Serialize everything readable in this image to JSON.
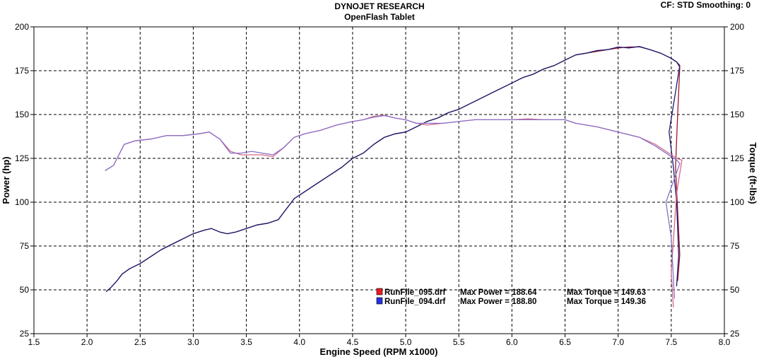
{
  "header": {
    "title": "DYNOJET RESEARCH",
    "subtitle": "OpenFlash Tablet",
    "settings": "CF: STD  Smoothing: 0"
  },
  "chart_data": {
    "type": "line",
    "xlabel": "Engine Speed (RPM x1000)",
    "ylabel_left": "Power (hp)",
    "ylabel_right": "Torque (ft-lbs)",
    "xlim": [
      1.5,
      8.0
    ],
    "ylim": [
      25,
      200
    ],
    "xticks": [
      "1.5",
      "2.0",
      "2.5",
      "3.0",
      "3.5",
      "4.0",
      "4.5",
      "5.0",
      "5.5",
      "6.0",
      "6.5",
      "7.0",
      "7.5",
      "8.0"
    ],
    "yticks": [
      "25",
      "50",
      "75",
      "100",
      "125",
      "150",
      "175",
      "200"
    ],
    "grid": true,
    "legend_position": "bottom-center",
    "legend": [
      {
        "file": "RunFile_095.drf",
        "power_label": "Max Power = 188.64",
        "torque_label": "Max Torque = 149.63",
        "color": "#e81d1d"
      },
      {
        "file": "RunFile_094.drf",
        "power_label": "Max Power = 188.80",
        "torque_label": "Max Torque = 149.36",
        "color": "#2233dd"
      }
    ],
    "series": [
      {
        "name": "RunFile_095.drf",
        "kind": "power",
        "color": "#9c1530",
        "points": [
          [
            2.18,
            49
          ],
          [
            2.22,
            51
          ],
          [
            2.28,
            55
          ],
          [
            2.33,
            59
          ],
          [
            2.4,
            62
          ],
          [
            2.5,
            65
          ],
          [
            2.6,
            69
          ],
          [
            2.7,
            73
          ],
          [
            2.8,
            76
          ],
          [
            2.9,
            79
          ],
          [
            3.0,
            82
          ],
          [
            3.1,
            84
          ],
          [
            3.17,
            85
          ],
          [
            3.25,
            83
          ],
          [
            3.32,
            82
          ],
          [
            3.4,
            83
          ],
          [
            3.5,
            85
          ],
          [
            3.6,
            87
          ],
          [
            3.7,
            88
          ],
          [
            3.8,
            90
          ],
          [
            3.85,
            94
          ],
          [
            3.9,
            98
          ],
          [
            3.95,
            102
          ],
          [
            4.05,
            106
          ],
          [
            4.2,
            112
          ],
          [
            4.4,
            120
          ],
          [
            4.5,
            125
          ],
          [
            4.6,
            128
          ],
          [
            4.7,
            133
          ],
          [
            4.8,
            137
          ],
          [
            4.9,
            139
          ],
          [
            5.0,
            140
          ],
          [
            5.1,
            143
          ],
          [
            5.2,
            146
          ],
          [
            5.3,
            148
          ],
          [
            5.4,
            151
          ],
          [
            5.5,
            153
          ],
          [
            5.6,
            156
          ],
          [
            5.7,
            159
          ],
          [
            5.8,
            162
          ],
          [
            5.9,
            165
          ],
          [
            6.0,
            168
          ],
          [
            6.1,
            171
          ],
          [
            6.2,
            173
          ],
          [
            6.3,
            176
          ],
          [
            6.4,
            178
          ],
          [
            6.5,
            181
          ],
          [
            6.6,
            184
          ],
          [
            6.7,
            185
          ],
          [
            6.8,
            186
          ],
          [
            6.9,
            187
          ],
          [
            7.0,
            188
          ],
          [
            7.1,
            188.5
          ],
          [
            7.2,
            188.6
          ],
          [
            7.3,
            187
          ],
          [
            7.4,
            185
          ],
          [
            7.5,
            182
          ],
          [
            7.55,
            180
          ],
          [
            7.58,
            177
          ],
          [
            7.56,
            150
          ],
          [
            7.54,
            120
          ],
          [
            7.56,
            95
          ],
          [
            7.58,
            70
          ],
          [
            7.56,
            55
          ]
        ]
      },
      {
        "name": "RunFile_094.drf",
        "kind": "power",
        "color": "#1a1a6e",
        "points": [
          [
            2.18,
            49
          ],
          [
            2.22,
            51
          ],
          [
            2.28,
            55
          ],
          [
            2.33,
            59
          ],
          [
            2.4,
            62
          ],
          [
            2.5,
            65
          ],
          [
            2.6,
            69
          ],
          [
            2.7,
            73
          ],
          [
            2.8,
            76
          ],
          [
            2.9,
            79
          ],
          [
            3.0,
            82
          ],
          [
            3.1,
            84
          ],
          [
            3.17,
            85
          ],
          [
            3.25,
            83
          ],
          [
            3.32,
            82
          ],
          [
            3.4,
            83
          ],
          [
            3.5,
            85
          ],
          [
            3.6,
            87
          ],
          [
            3.7,
            88
          ],
          [
            3.8,
            90
          ],
          [
            3.85,
            94
          ],
          [
            3.9,
            98
          ],
          [
            3.95,
            102
          ],
          [
            4.05,
            106
          ],
          [
            4.2,
            112
          ],
          [
            4.4,
            120
          ],
          [
            4.5,
            125
          ],
          [
            4.6,
            128
          ],
          [
            4.7,
            133
          ],
          [
            4.8,
            137
          ],
          [
            4.9,
            139
          ],
          [
            5.0,
            140
          ],
          [
            5.1,
            143
          ],
          [
            5.2,
            146
          ],
          [
            5.3,
            148
          ],
          [
            5.4,
            151
          ],
          [
            5.5,
            153
          ],
          [
            5.6,
            156
          ],
          [
            5.7,
            159
          ],
          [
            5.8,
            162
          ],
          [
            5.9,
            165
          ],
          [
            6.0,
            168
          ],
          [
            6.1,
            171
          ],
          [
            6.2,
            173
          ],
          [
            6.3,
            176
          ],
          [
            6.4,
            178
          ],
          [
            6.5,
            181
          ],
          [
            6.6,
            184
          ],
          [
            6.7,
            185
          ],
          [
            6.8,
            186.5
          ],
          [
            6.9,
            187
          ],
          [
            7.0,
            188.5
          ],
          [
            7.1,
            188
          ],
          [
            7.2,
            188.8
          ],
          [
            7.3,
            187
          ],
          [
            7.4,
            185
          ],
          [
            7.5,
            182
          ],
          [
            7.55,
            180
          ],
          [
            7.58,
            178
          ],
          [
            7.48,
            140
          ],
          [
            7.52,
            120
          ],
          [
            7.55,
            100
          ],
          [
            7.57,
            70
          ],
          [
            7.55,
            52
          ]
        ]
      },
      {
        "name": "RunFile_095.drf",
        "kind": "torque",
        "color": "#d46a8a",
        "points": [
          [
            2.17,
            118
          ],
          [
            2.25,
            121
          ],
          [
            2.3,
            127
          ],
          [
            2.35,
            133
          ],
          [
            2.45,
            135
          ],
          [
            2.6,
            136
          ],
          [
            2.75,
            138
          ],
          [
            2.9,
            138
          ],
          [
            3.05,
            139
          ],
          [
            3.15,
            140
          ],
          [
            3.25,
            136
          ],
          [
            3.35,
            129
          ],
          [
            3.45,
            127
          ],
          [
            3.55,
            127
          ],
          [
            3.65,
            127
          ],
          [
            3.75,
            126
          ],
          [
            3.85,
            131
          ],
          [
            3.95,
            137
          ],
          [
            4.05,
            139
          ],
          [
            4.2,
            141
          ],
          [
            4.35,
            144
          ],
          [
            4.5,
            146
          ],
          [
            4.6,
            147
          ],
          [
            4.7,
            149
          ],
          [
            4.8,
            149.6
          ],
          [
            4.9,
            148
          ],
          [
            5.0,
            147
          ],
          [
            5.1,
            145
          ],
          [
            5.2,
            144
          ],
          [
            5.35,
            145
          ],
          [
            5.5,
            146
          ],
          [
            5.65,
            147
          ],
          [
            5.8,
            147
          ],
          [
            6.0,
            147
          ],
          [
            6.15,
            147.5
          ],
          [
            6.3,
            147
          ],
          [
            6.5,
            147
          ],
          [
            6.6,
            145
          ],
          [
            6.8,
            143
          ],
          [
            7.0,
            140
          ],
          [
            7.2,
            137
          ],
          [
            7.35,
            133
          ],
          [
            7.45,
            129
          ],
          [
            7.55,
            125
          ],
          [
            7.6,
            124
          ],
          [
            7.55,
            105
          ],
          [
            7.5,
            60
          ],
          [
            7.52,
            40
          ]
        ]
      },
      {
        "name": "RunFile_094.drf",
        "kind": "torque",
        "color": "#8a70c8",
        "points": [
          [
            2.17,
            118
          ],
          [
            2.25,
            121
          ],
          [
            2.3,
            127
          ],
          [
            2.35,
            133
          ],
          [
            2.45,
            135
          ],
          [
            2.6,
            136
          ],
          [
            2.75,
            138
          ],
          [
            2.9,
            138
          ],
          [
            3.05,
            139
          ],
          [
            3.15,
            140
          ],
          [
            3.25,
            136
          ],
          [
            3.35,
            128
          ],
          [
            3.45,
            128
          ],
          [
            3.55,
            129
          ],
          [
            3.65,
            128
          ],
          [
            3.75,
            127
          ],
          [
            3.85,
            131
          ],
          [
            3.95,
            137
          ],
          [
            4.05,
            139
          ],
          [
            4.2,
            141
          ],
          [
            4.35,
            144
          ],
          [
            4.5,
            146
          ],
          [
            4.6,
            147
          ],
          [
            4.7,
            148.5
          ],
          [
            4.8,
            149.4
          ],
          [
            4.9,
            148
          ],
          [
            5.0,
            147
          ],
          [
            5.1,
            145
          ],
          [
            5.2,
            145
          ],
          [
            5.35,
            145
          ],
          [
            5.5,
            146
          ],
          [
            5.65,
            147
          ],
          [
            5.8,
            147
          ],
          [
            6.0,
            147
          ],
          [
            6.15,
            147
          ],
          [
            6.3,
            147
          ],
          [
            6.5,
            147
          ],
          [
            6.6,
            145
          ],
          [
            6.8,
            143
          ],
          [
            7.0,
            140
          ],
          [
            7.2,
            137
          ],
          [
            7.35,
            132
          ],
          [
            7.45,
            128
          ],
          [
            7.55,
            124
          ],
          [
            7.58,
            122
          ],
          [
            7.45,
            100
          ],
          [
            7.5,
            80
          ],
          [
            7.53,
            45
          ]
        ]
      }
    ]
  }
}
